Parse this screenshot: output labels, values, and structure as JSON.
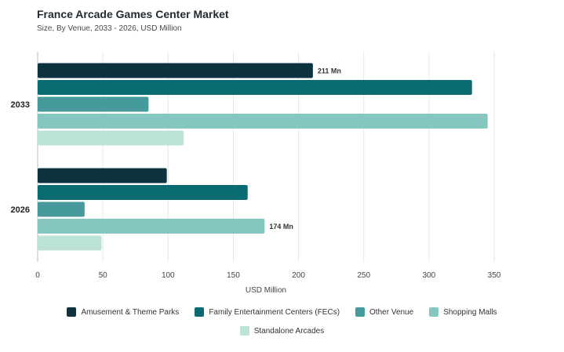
{
  "header": {
    "title": "France Arcade Games Center Market",
    "subtitle": "Size, By Venue, 2033 - 2026, USD Million"
  },
  "chart_data": {
    "type": "bar",
    "orientation": "horizontal",
    "categories": [
      "2033",
      "2026"
    ],
    "series": [
      {
        "name": "Amusement & Theme Parks",
        "color": "#0d3340",
        "values": [
          211,
          99
        ]
      },
      {
        "name": "Family Entertainment Centers (FECs)",
        "color": "#0a6b72",
        "values": [
          333,
          161
        ]
      },
      {
        "name": "Other Venue",
        "color": "#479a9b",
        "values": [
          85,
          36
        ]
      },
      {
        "name": "Shopping Malls",
        "color": "#86c6c0",
        "values": [
          345,
          174
        ]
      },
      {
        "name": "Standalone Arcades",
        "color": "#bde3d6",
        "values": [
          112,
          49
        ]
      }
    ],
    "data_labels": [
      {
        "series": 0,
        "category": 0,
        "text": "211 Mn"
      },
      {
        "series": 3,
        "category": 1,
        "text": "174 Mn"
      }
    ],
    "xlabel": "USD Million",
    "xlim": [
      0,
      350
    ],
    "xticks": [
      0,
      50,
      100,
      150,
      200,
      250,
      300,
      350
    ],
    "grid": true,
    "legend_position": "bottom"
  }
}
